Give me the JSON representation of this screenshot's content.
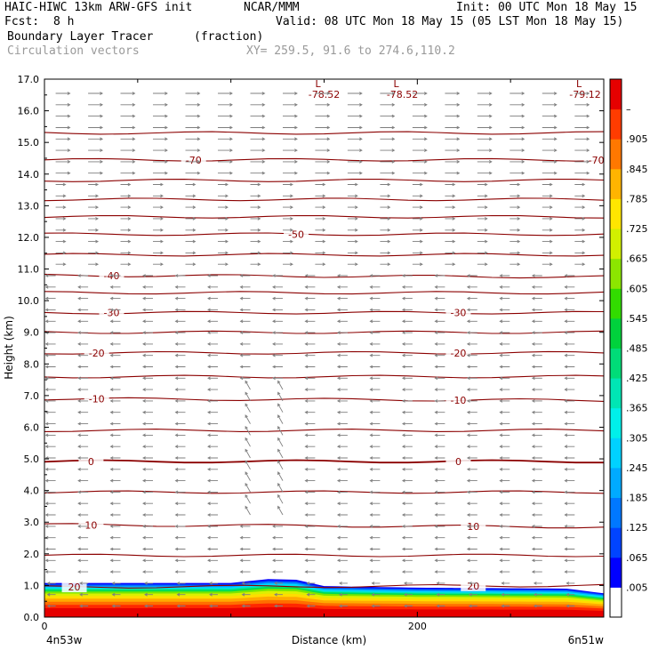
{
  "header": {
    "model": "HAIC-HIWC 13km ARW-GFS init",
    "org": "NCAR/MMM",
    "init": "Init: 00 UTC Mon 18 May 15",
    "fcst_label": "Fcst:",
    "fcst_value": "8 h",
    "valid": "Valid: 08 UTC Mon 18 May 15 (05 LST Mon 18 May 15)",
    "field": "Boundary Layer Tracer",
    "units": "(fraction)",
    "overlay": "Circulation vectors",
    "xy": "XY= 259.5, 91.6 to 274.6,110.2"
  },
  "chart_data": {
    "type": "heatmap",
    "title": "Boundary Layer Tracer",
    "ylabel": "Height (km)",
    "xlabel": "Distance (km)",
    "ylim": [
      0,
      17
    ],
    "xlim": [
      0,
      300
    ],
    "y_ticks": [
      "0.0",
      "1.0",
      "2.0",
      "3.0",
      "4.0",
      "5.0",
      "6.0",
      "7.0",
      "8.0",
      "9.0",
      "10.0",
      "11.0",
      "12.0",
      "13.0",
      "14.0",
      "15.0",
      "16.0",
      "17.0"
    ],
    "x_ticks": [
      {
        "value": 0,
        "label": "0"
      },
      {
        "value": 200,
        "label": "200"
      }
    ],
    "x_end_labels": {
      "left": "4n53w",
      "right": "6n51w"
    },
    "colorbar_labels": [
      ".005",
      ".065",
      ".125",
      ".185",
      ".245",
      ".305",
      ".365",
      ".425",
      ".485",
      ".545",
      ".605",
      ".665",
      ".725",
      ".785",
      ".845",
      ".905",
      "–"
    ],
    "colorbar_colors": [
      "#ffffff",
      "#0000ff",
      "#0044ff",
      "#0078ff",
      "#00aaff",
      "#00d2ff",
      "#00f0ea",
      "#00e6b4",
      "#00dc78",
      "#00d23c",
      "#32dc00",
      "#8ce600",
      "#d2f000",
      "#ffe600",
      "#ffb400",
      "#ff7800",
      "#ff3c00",
      "#e60000"
    ],
    "bl_top_km": [
      [
        0,
        1.08
      ],
      [
        100,
        1.08
      ],
      [
        120,
        1.2
      ],
      [
        135,
        1.18
      ],
      [
        150,
        0.98
      ],
      [
        200,
        0.93
      ],
      [
        280,
        0.9
      ],
      [
        300,
        0.75
      ]
    ],
    "isotherms_C": [
      {
        "value": -70,
        "y_left": 14.45,
        "y_right": 14.45,
        "label_x": [
          80,
          296
        ]
      },
      {
        "value": -50,
        "y_left": 12.1,
        "y_right": 12.1,
        "label_x": [
          135
        ]
      },
      {
        "value": -40,
        "y_left": 10.8,
        "y_right": 10.75,
        "label_x": [
          36
        ]
      },
      {
        "value": -30,
        "y_left": 9.62,
        "y_right": 9.62,
        "label_x": [
          36,
          222
        ]
      },
      {
        "value": -20,
        "y_left": 8.35,
        "y_right": 8.35,
        "label_x": [
          28,
          222
        ]
      },
      {
        "value": -10,
        "y_left": 6.9,
        "y_right": 6.85,
        "label_x": [
          28,
          222
        ]
      },
      {
        "value": 0,
        "y_left": 4.92,
        "y_right": 4.92,
        "label_x": [
          25,
          222
        ]
      },
      {
        "value": 10,
        "y_left": 2.92,
        "y_right": 2.85,
        "label_x": [
          25,
          230
        ]
      },
      {
        "value": 20,
        "y_left": 0.95,
        "y_right": 1.0,
        "label_x": [
          16,
          230
        ]
      }
    ],
    "other_isotherm_heights_km": [
      15.3,
      13.8,
      13.2,
      12.65,
      11.45,
      10.25,
      9.0,
      7.6,
      5.9,
      3.95,
      1.95
    ],
    "pressure_lows": [
      {
        "label": "L",
        "value": "-78.52",
        "x": 150
      },
      {
        "label": "L",
        "value": "-78.52",
        "x": 192
      },
      {
        "label": "L",
        "value": "-79.12",
        "x": 290
      }
    ]
  },
  "colors": {
    "isotherm": "#8b0000",
    "vector": "#7f7f7f",
    "axis": "#000000"
  }
}
